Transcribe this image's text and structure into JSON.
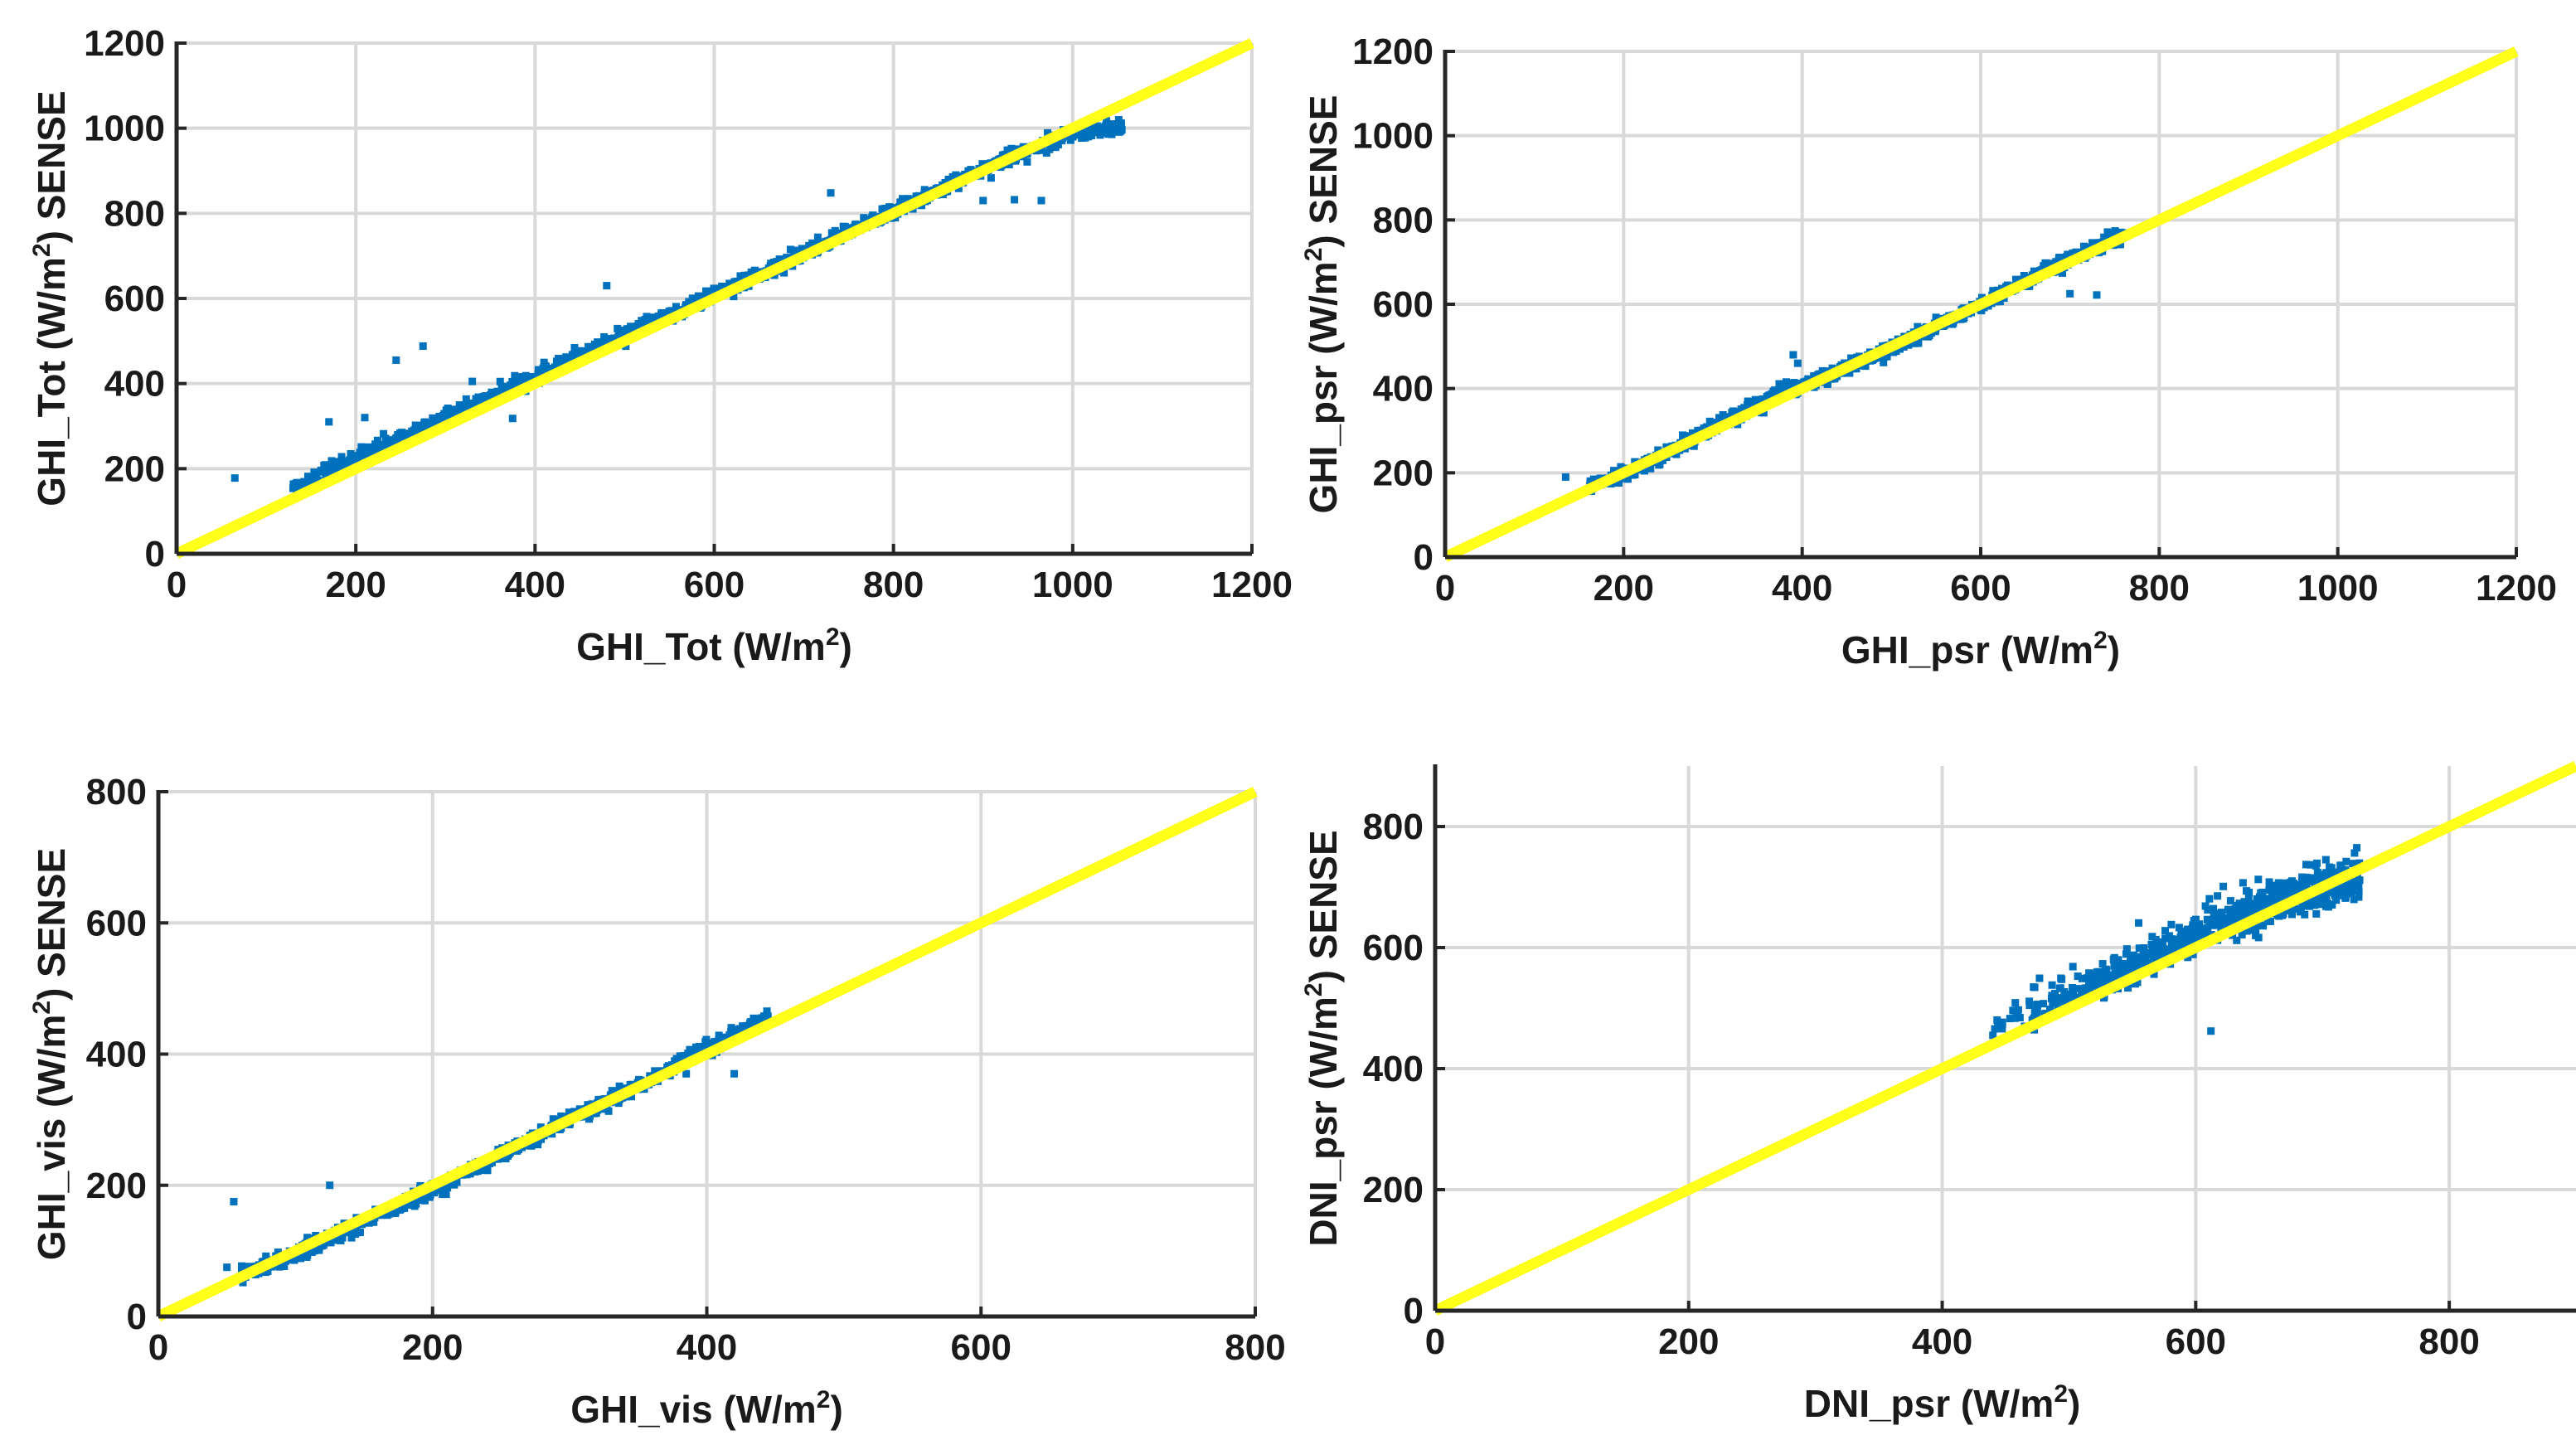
{
  "colors": {
    "scatter": "#0072bd",
    "identity_line": "#ffff1a",
    "grid": "#d9d9d9",
    "axis": "#262626"
  },
  "chart_data": [
    {
      "type": "scatter",
      "panel": "top-left",
      "xlabel": "GHI_Tot (W/m²)",
      "ylabel": "GHI_Tot (W/m²) SENSE",
      "xlim": [
        0,
        1200
      ],
      "ylim": [
        0,
        1200
      ],
      "xticks": [
        0,
        200,
        400,
        600,
        800,
        1000,
        1200
      ],
      "yticks": [
        0,
        200,
        400,
        600,
        800,
        1000,
        1200
      ],
      "grid": true,
      "reference_line": {
        "name": "1:1",
        "x": [
          0,
          1200
        ],
        "y": [
          0,
          1200
        ]
      },
      "trend_points": [
        [
          130,
          155
        ],
        [
          200,
          225
        ],
        [
          300,
          320
        ],
        [
          400,
          415
        ],
        [
          500,
          515
        ],
        [
          600,
          608
        ],
        [
          700,
          705
        ],
        [
          800,
          805
        ],
        [
          900,
          905
        ],
        [
          1000,
          990
        ],
        [
          1055,
          1005
        ]
      ],
      "outliers": [
        [
          65,
          178
        ],
        [
          170,
          310
        ],
        [
          210,
          320
        ],
        [
          245,
          455
        ],
        [
          275,
          488
        ],
        [
          330,
          405
        ],
        [
          375,
          318
        ],
        [
          480,
          630
        ],
        [
          730,
          848
        ],
        [
          900,
          830
        ],
        [
          935,
          832
        ],
        [
          965,
          830
        ]
      ]
    },
    {
      "type": "scatter",
      "panel": "top-right",
      "xlabel": "GHI_psr (W/m²)",
      "ylabel": "GHI_psr (W/m²) SENSE",
      "xlim": [
        0,
        1200
      ],
      "ylim": [
        0,
        1200
      ],
      "xticks": [
        0,
        200,
        400,
        600,
        800,
        1000,
        1200
      ],
      "yticks": [
        0,
        200,
        400,
        600,
        800,
        1000,
        1200
      ],
      "grid": true,
      "reference_line": {
        "name": "1:1",
        "x": [
          0,
          1200
        ],
        "y": [
          0,
          1200
        ]
      },
      "trend_points": [
        [
          160,
          170
        ],
        [
          200,
          195
        ],
        [
          300,
          305
        ],
        [
          380,
          395
        ],
        [
          400,
          405
        ],
        [
          500,
          495
        ],
        [
          600,
          598
        ],
        [
          700,
          710
        ],
        [
          760,
          765
        ]
      ],
      "outliers": [
        [
          135,
          190
        ],
        [
          390,
          480
        ],
        [
          395,
          460
        ],
        [
          700,
          625
        ],
        [
          730,
          622
        ]
      ]
    },
    {
      "type": "scatter",
      "panel": "bottom-left",
      "xlabel": "GHI_vis (W/m²)",
      "ylabel": "GHI_vis (W/m²) SENSE",
      "xlim": [
        0,
        800
      ],
      "ylim": [
        0,
        800
      ],
      "xticks": [
        0,
        200,
        400,
        600,
        800
      ],
      "yticks": [
        0,
        200,
        400,
        600,
        800
      ],
      "grid": true,
      "reference_line": {
        "name": "1:1",
        "x": [
          0,
          800
        ],
        "y": [
          0,
          800
        ]
      },
      "trend_points": [
        [
          60,
          65
        ],
        [
          100,
          95
        ],
        [
          150,
          145
        ],
        [
          200,
          195
        ],
        [
          250,
          245
        ],
        [
          300,
          300
        ],
        [
          350,
          350
        ],
        [
          400,
          410
        ],
        [
          445,
          455
        ]
      ],
      "outliers": [
        [
          55,
          175
        ],
        [
          125,
          200
        ],
        [
          50,
          75
        ],
        [
          385,
          370
        ],
        [
          420,
          370
        ]
      ]
    },
    {
      "type": "scatter",
      "panel": "bottom-right",
      "xlabel": "DNI_psr (W/m²)",
      "ylabel": "DNI_psr (W/m²) SENSE",
      "xlim": [
        0,
        900
      ],
      "ylim": [
        0,
        900
      ],
      "xticks": [
        0,
        200,
        400,
        600,
        800
      ],
      "yticks": [
        0,
        200,
        400,
        600,
        800
      ],
      "grid": true,
      "reference_line": {
        "name": "1:1",
        "x": [
          0,
          900
        ],
        "y": [
          0,
          900
        ]
      },
      "trend_points": [
        [
          430,
          450
        ],
        [
          480,
          500
        ],
        [
          530,
          540
        ],
        [
          570,
          580
        ],
        [
          600,
          620
        ],
        [
          640,
          650
        ],
        [
          680,
          680
        ],
        [
          730,
          705
        ]
      ],
      "outliers": [
        [
          400,
          400
        ],
        [
          612,
          462
        ],
        [
          440,
          455
        ],
        [
          465,
          470
        ]
      ]
    }
  ]
}
